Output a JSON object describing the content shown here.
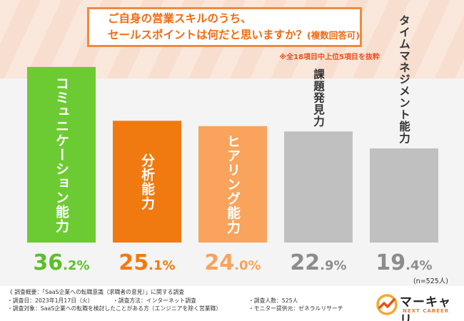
{
  "title": {
    "line1": "ご自身の営業スキルのうち、",
    "line2": "セールスポイントは何だと思いますか？",
    "line2_suffix": "(複数回答可)"
  },
  "note": "※全18項目中上位5項目を抜粋",
  "n_label": "(n=525人)",
  "chart_data": {
    "type": "bar",
    "categories": [
      "コミュニケーション能力",
      "分析能力",
      "ヒアリング能力",
      "課題発見力",
      "タイムマネジメント能力"
    ],
    "values": [
      36.2,
      25.1,
      24.0,
      22.9,
      19.4
    ],
    "value_labels": [
      {
        "int": "36",
        "dec": ".2%"
      },
      {
        "int": "25",
        "dec": ".1%"
      },
      {
        "int": "24",
        "dec": ".0%"
      },
      {
        "int": "22",
        "dec": ".9%"
      },
      {
        "int": "19",
        "dec": ".4%"
      }
    ],
    "ylim": [
      0,
      40
    ],
    "colors": [
      "#6ccb32",
      "#f07a10",
      "#f9a35c",
      "#c0c0c0",
      "#c0c0c0"
    ],
    "label_colors": [
      "#5cbf28",
      "#f07a10",
      "#f9a35c",
      "#8c8c8c",
      "#8c8c8c"
    ],
    "category_text_colors": [
      "#ffffff",
      "#ffffff",
      "#ffffff",
      "#333333",
      "#333333"
    ]
  },
  "survey": {
    "overview": "《 調査概要：「SaaS企業への転職意識（求職者の意見）」に関する調査",
    "date": "・調査日：2023年1月17日（火）",
    "method": "・調査方法：インターネット調査",
    "count": "・調査人数：525人",
    "target": "・調査対象：SaaS企業への転職を検討したことがある方（エンジニアを除く営業職）",
    "provider": "・モニター提供元：ゼネラルリサーチ"
  },
  "logo": {
    "main": "マーキャリ",
    "sub": "NEXT CAREER"
  }
}
